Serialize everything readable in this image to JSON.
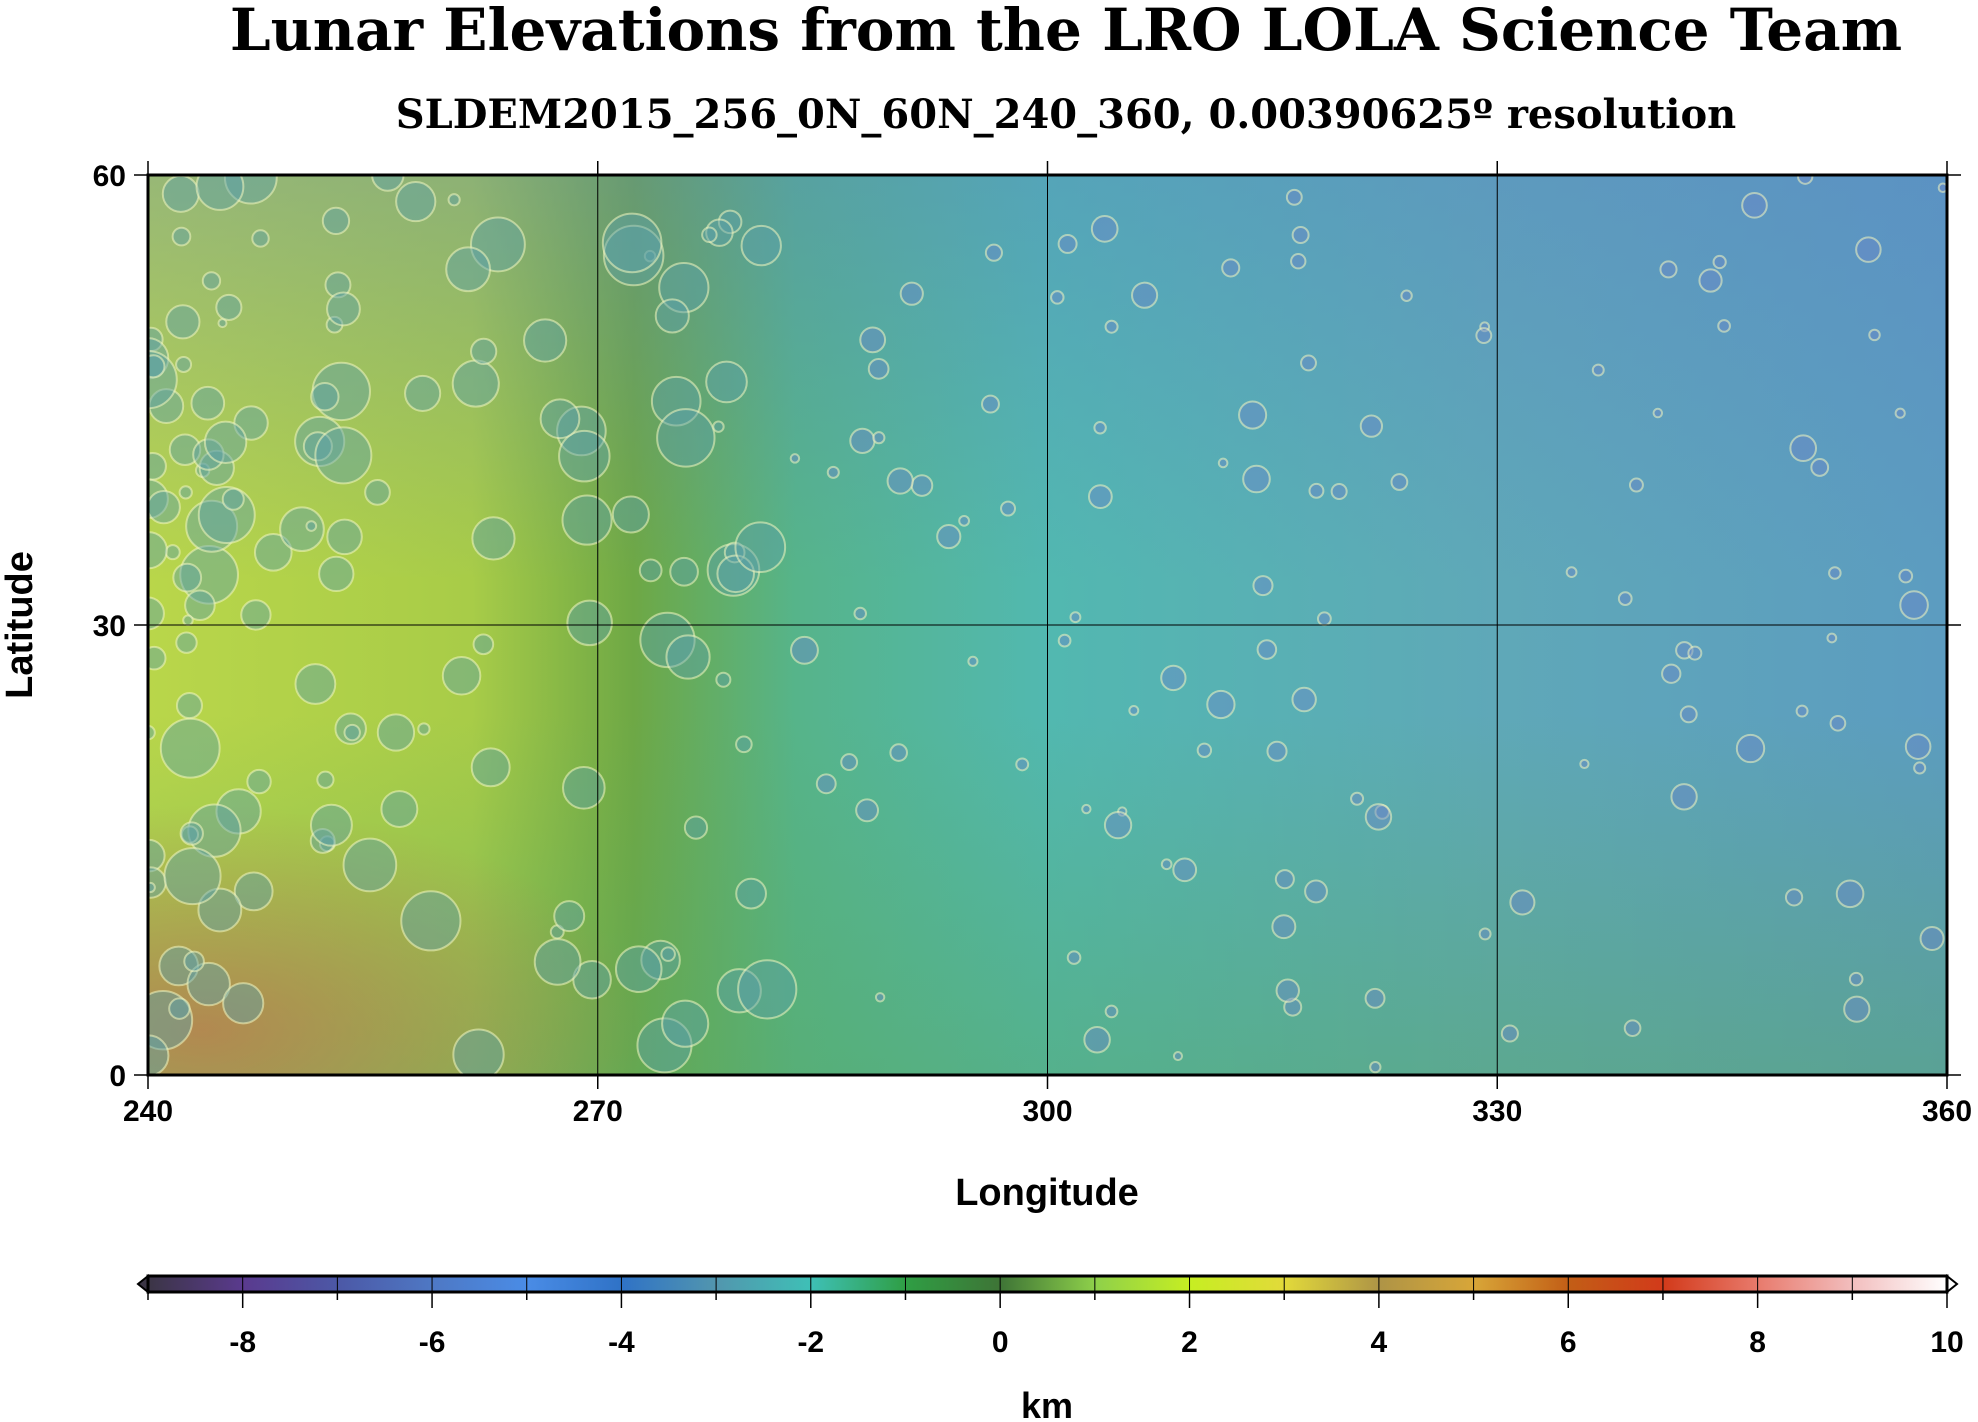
{
  "chart_data": {
    "type": "heatmap",
    "title": "Lunar Elevations from the LRO LOLA Science Team",
    "subtitle": "SLDEM2015_256_0N_60N_240_360, 0.00390625º resolution",
    "xlabel": "Longitude",
    "ylabel": "Latitude",
    "xlim": [
      240,
      360
    ],
    "ylim": [
      0,
      60
    ],
    "xticks": [
      "240",
      "270",
      "300",
      "330",
      "360"
    ],
    "yticks": [
      "0",
      "30",
      "60"
    ],
    "grid": true,
    "colorbar": {
      "label": "km",
      "range": [
        -9,
        10
      ],
      "ticks": [
        "-8",
        "-6",
        "-4",
        "-2",
        "0",
        "2",
        "4",
        "6",
        "8",
        "10"
      ],
      "placement": "bottom",
      "colors": [
        "#3b3545",
        "#5a3a8e",
        "#4c58a6",
        "#4e78c4",
        "#4a8ce6",
        "#2f72c6",
        "#5296ae",
        "#3ec0b6",
        "#2f9e44",
        "#3e7436",
        "#8ed04a",
        "#c6ee22",
        "#e2da3a",
        "#ae9446",
        "#d8a638",
        "#c25e16",
        "#d23a1a",
        "#e87a6c",
        "#f2bebe",
        "#ffffff"
      ]
    }
  }
}
